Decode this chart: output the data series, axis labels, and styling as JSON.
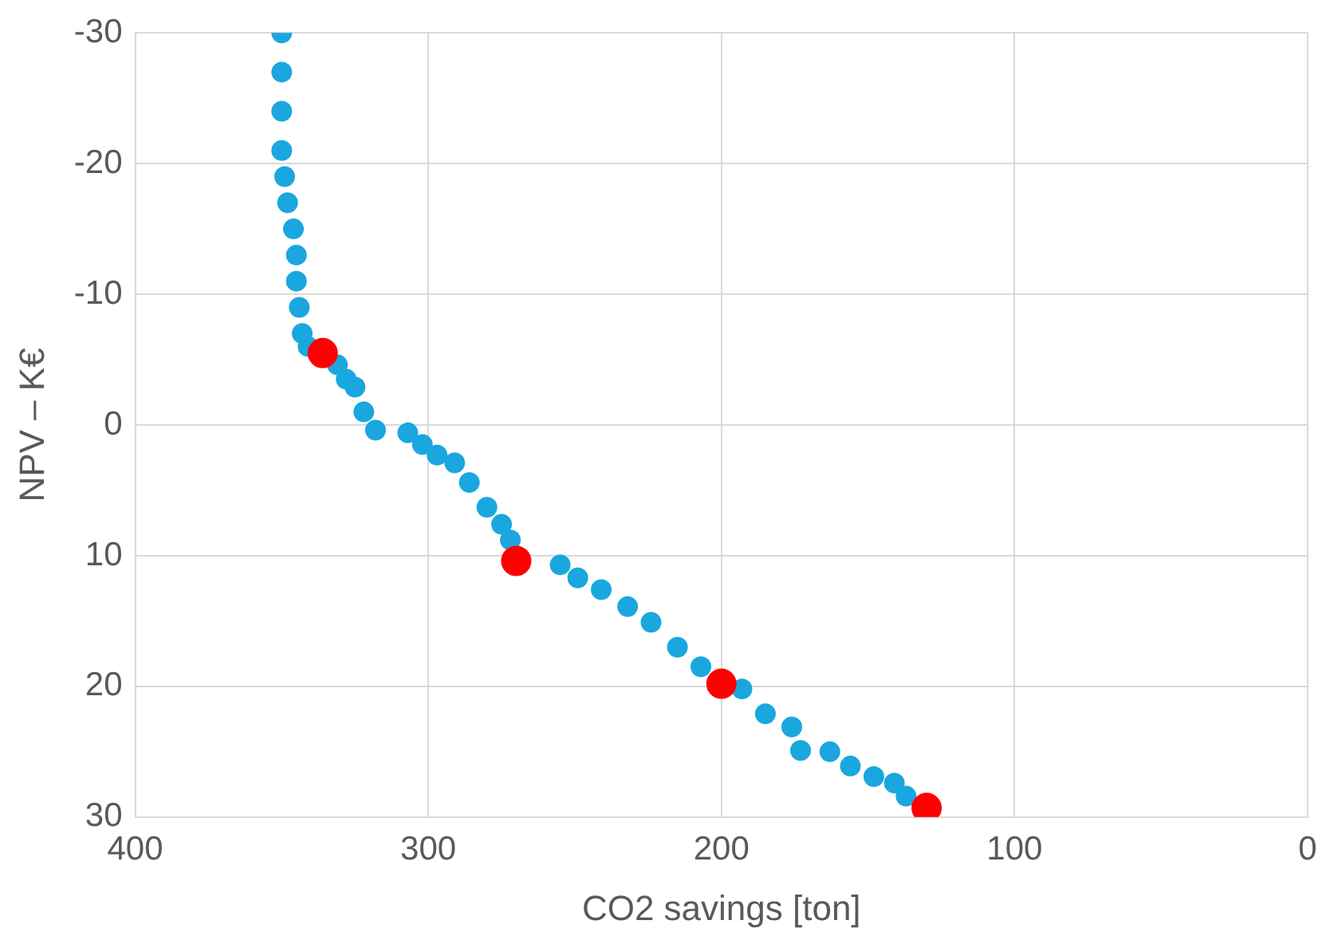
{
  "chart_data": {
    "type": "scatter",
    "xlabel": "CO2 savings [ton]",
    "ylabel": "NPV – K€",
    "xlim": [
      400,
      0
    ],
    "xticks": [
      400,
      300,
      200,
      100,
      0
    ],
    "ylim": [
      30,
      -30
    ],
    "yticks": [
      -30,
      -20,
      -10,
      0,
      10,
      20,
      30
    ],
    "grid": true,
    "marker": "circle",
    "series": [
      {
        "color": "#1aa7e0",
        "x": [
          350,
          350,
          350,
          350,
          349,
          348,
          346,
          345,
          345,
          344,
          343,
          341,
          331,
          328,
          325,
          322,
          318,
          307,
          302,
          297,
          291,
          286,
          280,
          275,
          272,
          255,
          249,
          241,
          232,
          224,
          215,
          207,
          193,
          185,
          176,
          173,
          163,
          156,
          148,
          141,
          137
        ],
        "values": [
          -30,
          -27,
          -24,
          -21,
          -19,
          -17,
          -15,
          -13,
          -11,
          -9,
          -7,
          -6,
          -4.6,
          -3.5,
          -2.9,
          -1,
          0.4,
          0.6,
          1.5,
          2.3,
          2.9,
          4.4,
          6.3,
          7.6,
          8.8,
          10.7,
          11.7,
          12.6,
          13.9,
          15.1,
          17,
          18.5,
          20.2,
          22.1,
          23.1,
          24.9,
          25,
          26.1,
          26.9,
          27.4,
          28.4
        ]
      },
      {
        "color": "#ff0000",
        "x": [
          336,
          270,
          200,
          130
        ],
        "values": [
          -5.5,
          10.4,
          19.8,
          29.3
        ]
      }
    ]
  }
}
